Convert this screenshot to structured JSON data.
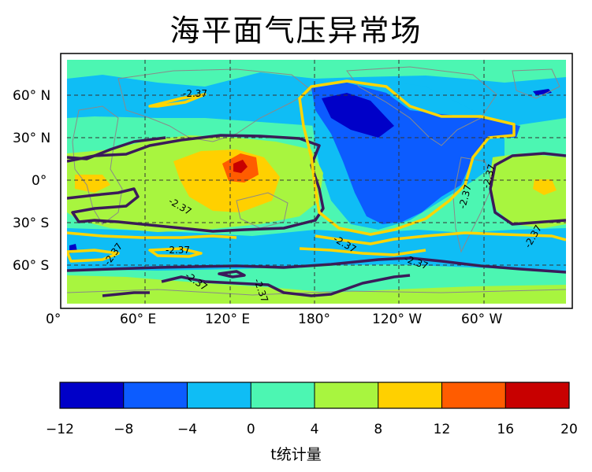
{
  "title": "海平面气压异常场",
  "chart_data": {
    "type": "heatmap",
    "title": "海平面气压异常场",
    "x_ticks": [
      "0°",
      "60° E",
      "120° E",
      "180°",
      "120° W",
      "60° W"
    ],
    "y_ticks": [
      "60° N",
      "30° N",
      "0°",
      "30° S",
      "60° S"
    ],
    "grid": true,
    "contour_level": -2.37,
    "contour_labels": [
      "-2.37",
      "-2.37",
      "-2.37",
      "-2.37",
      "-2.37",
      "-2.37",
      "-2.37",
      "-2.37",
      "-2.37",
      "-2.37",
      "-2.37"
    ],
    "colorbar": {
      "label": "t统计量",
      "ticks": [
        "−12",
        "−8",
        "−4",
        "0",
        "4",
        "8",
        "12",
        "16",
        "20"
      ],
      "levels": [
        -12,
        -8,
        -4,
        0,
        4,
        8,
        12,
        16,
        20
      ],
      "colors": [
        "#0000c8",
        "#0c5cff",
        "#0fbdf5",
        "#4cf6b2",
        "#a8f53f",
        "#ffd000",
        "#ff5c00",
        "#c80000"
      ]
    }
  }
}
